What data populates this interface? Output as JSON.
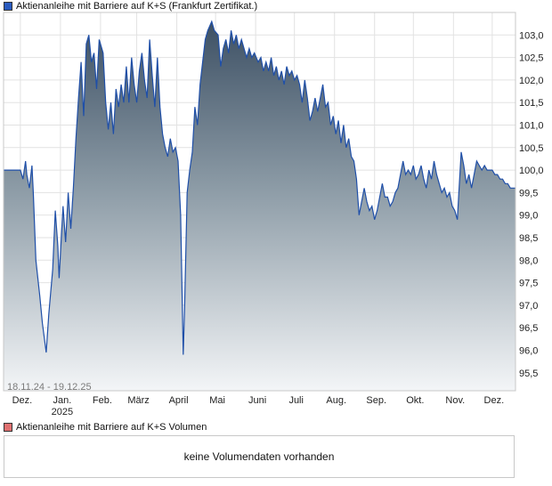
{
  "chart_data": {
    "type": "area",
    "title": "Aktienanleihe mit Barriere auf K+S  (Frankfurt Zertifikat.)",
    "date_range": "18.11.24 - 19.12.25",
    "ylim": [
      95.1,
      103.5
    ],
    "y_ticks": [
      "103,0",
      "102,5",
      "102,0",
      "101,5",
      "101,0",
      "100,5",
      "100,0",
      "99,5",
      "99,0",
      "98,5",
      "98,0",
      "97,5",
      "97,0",
      "96,5",
      "96,0",
      "95,5"
    ],
    "y_tick_values": [
      103.0,
      102.5,
      102.0,
      101.5,
      101.0,
      100.5,
      100.0,
      99.5,
      99.0,
      98.5,
      98.0,
      97.5,
      97.0,
      96.5,
      96.0,
      95.5
    ],
    "x_ticks": [
      {
        "label": "Dez.",
        "sub": "",
        "date": "2024-12-01"
      },
      {
        "label": "Jan.",
        "sub": "2025",
        "date": "2025-01-01"
      },
      {
        "label": "Feb.",
        "sub": "",
        "date": "2025-02-01"
      },
      {
        "label": "März",
        "sub": "",
        "date": "2025-03-01"
      },
      {
        "label": "April",
        "sub": "",
        "date": "2025-04-01"
      },
      {
        "label": "Mai",
        "sub": "",
        "date": "2025-05-01"
      },
      {
        "label": "Juni",
        "sub": "",
        "date": "2025-06-01"
      },
      {
        "label": "Juli",
        "sub": "",
        "date": "2025-07-01"
      },
      {
        "label": "Aug.",
        "sub": "",
        "date": "2025-08-01"
      },
      {
        "label": "Sep.",
        "sub": "",
        "date": "2025-09-01"
      },
      {
        "label": "Okt.",
        "sub": "",
        "date": "2025-10-01"
      },
      {
        "label": "Nov.",
        "sub": "",
        "date": "2025-11-01"
      },
      {
        "label": "Dez.",
        "sub": "",
        "date": "2025-12-01"
      }
    ],
    "x_start": "2024-11-18",
    "x_end": "2025-12-19",
    "series": [
      {
        "name": "",
        "color": "#1f4fa8",
        "points": [
          [
            "2024-11-18",
            100.0
          ],
          [
            "2024-11-25",
            100.0
          ],
          [
            "2024-11-28",
            100.0
          ],
          [
            "2024-12-01",
            100.0
          ],
          [
            "2024-12-03",
            99.8
          ],
          [
            "2024-12-05",
            100.2
          ],
          [
            "2024-12-06",
            99.9
          ],
          [
            "2024-12-08",
            99.6
          ],
          [
            "2024-12-10",
            100.1
          ],
          [
            "2024-12-11",
            99.5
          ],
          [
            "2024-12-13",
            98.0
          ],
          [
            "2024-12-16",
            97.2
          ],
          [
            "2024-12-18",
            96.6
          ],
          [
            "2024-12-21",
            95.95
          ],
          [
            "2024-12-23",
            96.8
          ],
          [
            "2024-12-26",
            97.8
          ],
          [
            "2024-12-28",
            99.1
          ],
          [
            "2024-12-30",
            98.3
          ],
          [
            "2024-12-31",
            97.6
          ],
          [
            "2025-01-03",
            99.2
          ],
          [
            "2025-01-05",
            98.4
          ],
          [
            "2025-01-07",
            99.5
          ],
          [
            "2025-01-09",
            98.7
          ],
          [
            "2025-01-11",
            99.6
          ],
          [
            "2025-01-13",
            100.7
          ],
          [
            "2025-01-15",
            101.6
          ],
          [
            "2025-01-17",
            102.4
          ],
          [
            "2025-01-19",
            101.2
          ],
          [
            "2025-01-21",
            102.8
          ],
          [
            "2025-01-23",
            103.0
          ],
          [
            "2025-01-25",
            102.4
          ],
          [
            "2025-01-27",
            102.6
          ],
          [
            "2025-01-29",
            101.8
          ],
          [
            "2025-01-31",
            102.9
          ],
          [
            "2025-02-03",
            102.6
          ],
          [
            "2025-02-05",
            101.5
          ],
          [
            "2025-02-07",
            100.9
          ],
          [
            "2025-02-09",
            101.5
          ],
          [
            "2025-02-11",
            100.8
          ],
          [
            "2025-02-13",
            101.8
          ],
          [
            "2025-02-15",
            101.4
          ],
          [
            "2025-02-17",
            101.9
          ],
          [
            "2025-02-19",
            101.5
          ],
          [
            "2025-02-21",
            102.3
          ],
          [
            "2025-02-23",
            101.5
          ],
          [
            "2025-02-25",
            102.5
          ],
          [
            "2025-02-27",
            101.9
          ],
          [
            "2025-03-01",
            101.5
          ],
          [
            "2025-03-03",
            102.2
          ],
          [
            "2025-03-05",
            102.6
          ],
          [
            "2025-03-07",
            102.0
          ],
          [
            "2025-03-09",
            101.6
          ],
          [
            "2025-03-11",
            102.9
          ],
          [
            "2025-03-13",
            102.1
          ],
          [
            "2025-03-15",
            101.4
          ],
          [
            "2025-03-17",
            102.5
          ],
          [
            "2025-03-19",
            101.4
          ],
          [
            "2025-03-21",
            100.8
          ],
          [
            "2025-03-23",
            100.5
          ],
          [
            "2025-03-25",
            100.3
          ],
          [
            "2025-03-27",
            100.7
          ],
          [
            "2025-03-29",
            100.4
          ],
          [
            "2025-03-31",
            100.5
          ],
          [
            "2025-04-02",
            100.2
          ],
          [
            "2025-04-04",
            99.0
          ],
          [
            "2025-04-06",
            95.9
          ],
          [
            "2025-04-07",
            96.9
          ],
          [
            "2025-04-09",
            99.5
          ],
          [
            "2025-04-11",
            100.0
          ],
          [
            "2025-04-13",
            100.4
          ],
          [
            "2025-04-15",
            101.4
          ],
          [
            "2025-04-17",
            101.0
          ],
          [
            "2025-04-19",
            101.9
          ],
          [
            "2025-04-21",
            102.4
          ],
          [
            "2025-04-23",
            102.9
          ],
          [
            "2025-04-25",
            103.1
          ],
          [
            "2025-04-28",
            103.3
          ],
          [
            "2025-04-30",
            103.1
          ],
          [
            "2025-05-03",
            103.0
          ],
          [
            "2025-05-05",
            102.3
          ],
          [
            "2025-05-07",
            102.7
          ],
          [
            "2025-05-09",
            102.9
          ],
          [
            "2025-05-11",
            102.6
          ],
          [
            "2025-05-13",
            103.1
          ],
          [
            "2025-05-15",
            102.8
          ],
          [
            "2025-05-17",
            103.0
          ],
          [
            "2025-05-19",
            102.7
          ],
          [
            "2025-05-21",
            102.9
          ],
          [
            "2025-05-23",
            102.7
          ],
          [
            "2025-05-25",
            102.5
          ],
          [
            "2025-05-27",
            102.7
          ],
          [
            "2025-05-29",
            102.5
          ],
          [
            "2025-05-31",
            102.6
          ],
          [
            "2025-06-03",
            102.4
          ],
          [
            "2025-06-05",
            102.5
          ],
          [
            "2025-06-07",
            102.2
          ],
          [
            "2025-06-09",
            102.4
          ],
          [
            "2025-06-11",
            102.2
          ],
          [
            "2025-06-13",
            102.5
          ],
          [
            "2025-06-15",
            102.1
          ],
          [
            "2025-06-17",
            102.3
          ],
          [
            "2025-06-19",
            102.0
          ],
          [
            "2025-06-21",
            102.2
          ],
          [
            "2025-06-23",
            101.9
          ],
          [
            "2025-06-25",
            102.3
          ],
          [
            "2025-06-27",
            102.1
          ],
          [
            "2025-06-29",
            102.2
          ],
          [
            "2025-07-01",
            102.0
          ],
          [
            "2025-07-03",
            102.1
          ],
          [
            "2025-07-05",
            101.9
          ],
          [
            "2025-07-07",
            101.5
          ],
          [
            "2025-07-09",
            102.0
          ],
          [
            "2025-07-11",
            101.6
          ],
          [
            "2025-07-13",
            101.1
          ],
          [
            "2025-07-15",
            101.3
          ],
          [
            "2025-07-17",
            101.6
          ],
          [
            "2025-07-19",
            101.3
          ],
          [
            "2025-07-21",
            101.6
          ],
          [
            "2025-07-23",
            101.9
          ],
          [
            "2025-07-25",
            101.4
          ],
          [
            "2025-07-27",
            101.5
          ],
          [
            "2025-07-29",
            101.0
          ],
          [
            "2025-07-31",
            101.2
          ],
          [
            "2025-08-02",
            100.8
          ],
          [
            "2025-08-04",
            101.1
          ],
          [
            "2025-08-06",
            100.6
          ],
          [
            "2025-08-08",
            101.0
          ],
          [
            "2025-08-10",
            100.5
          ],
          [
            "2025-08-12",
            100.7
          ],
          [
            "2025-08-14",
            100.3
          ],
          [
            "2025-08-16",
            100.2
          ],
          [
            "2025-08-18",
            99.8
          ],
          [
            "2025-08-20",
            99.0
          ],
          [
            "2025-08-22",
            99.3
          ],
          [
            "2025-08-24",
            99.6
          ],
          [
            "2025-08-26",
            99.3
          ],
          [
            "2025-08-28",
            99.1
          ],
          [
            "2025-08-30",
            99.2
          ],
          [
            "2025-09-01",
            98.9
          ],
          [
            "2025-09-03",
            99.1
          ],
          [
            "2025-09-05",
            99.4
          ],
          [
            "2025-09-07",
            99.7
          ],
          [
            "2025-09-09",
            99.4
          ],
          [
            "2025-09-11",
            99.4
          ],
          [
            "2025-09-13",
            99.2
          ],
          [
            "2025-09-15",
            99.3
          ],
          [
            "2025-09-17",
            99.5
          ],
          [
            "2025-09-19",
            99.6
          ],
          [
            "2025-09-21",
            99.9
          ],
          [
            "2025-09-23",
            100.2
          ],
          [
            "2025-09-25",
            99.9
          ],
          [
            "2025-09-27",
            100.0
          ],
          [
            "2025-09-29",
            99.9
          ],
          [
            "2025-10-01",
            100.1
          ],
          [
            "2025-10-03",
            99.8
          ],
          [
            "2025-10-05",
            99.9
          ],
          [
            "2025-10-07",
            100.1
          ],
          [
            "2025-10-09",
            99.8
          ],
          [
            "2025-10-11",
            99.6
          ],
          [
            "2025-10-13",
            100.0
          ],
          [
            "2025-10-15",
            99.8
          ],
          [
            "2025-10-17",
            100.2
          ],
          [
            "2025-10-19",
            99.9
          ],
          [
            "2025-10-21",
            99.7
          ],
          [
            "2025-10-23",
            99.5
          ],
          [
            "2025-10-25",
            99.6
          ],
          [
            "2025-10-27",
            99.4
          ],
          [
            "2025-10-29",
            99.5
          ],
          [
            "2025-10-31",
            99.2
          ],
          [
            "2025-11-02",
            99.1
          ],
          [
            "2025-11-04",
            98.9
          ],
          [
            "2025-11-05",
            99.4
          ],
          [
            "2025-11-07",
            100.4
          ],
          [
            "2025-11-09",
            100.1
          ],
          [
            "2025-11-11",
            99.7
          ],
          [
            "2025-11-13",
            99.9
          ],
          [
            "2025-11-15",
            99.6
          ],
          [
            "2025-11-17",
            99.9
          ],
          [
            "2025-11-19",
            100.2
          ],
          [
            "2025-11-21",
            100.1
          ],
          [
            "2025-11-23",
            100.0
          ],
          [
            "2025-11-25",
            100.1
          ],
          [
            "2025-11-27",
            100.0
          ],
          [
            "2025-11-29",
            100.0
          ],
          [
            "2025-12-01",
            100.0
          ],
          [
            "2025-12-03",
            99.9
          ],
          [
            "2025-12-05",
            99.9
          ],
          [
            "2025-12-07",
            99.8
          ],
          [
            "2025-12-09",
            99.8
          ],
          [
            "2025-12-11",
            99.7
          ],
          [
            "2025-12-13",
            99.7
          ],
          [
            "2025-12-15",
            99.6
          ],
          [
            "2025-12-17",
            99.6
          ],
          [
            "2025-12-19",
            99.6
          ]
        ]
      }
    ],
    "grid": true,
    "volume": {
      "legend": "Aktienanleihe mit Barriere auf K+S  Volumen",
      "message": "keine Volumendaten vorhanden",
      "color": "#e07070"
    }
  }
}
